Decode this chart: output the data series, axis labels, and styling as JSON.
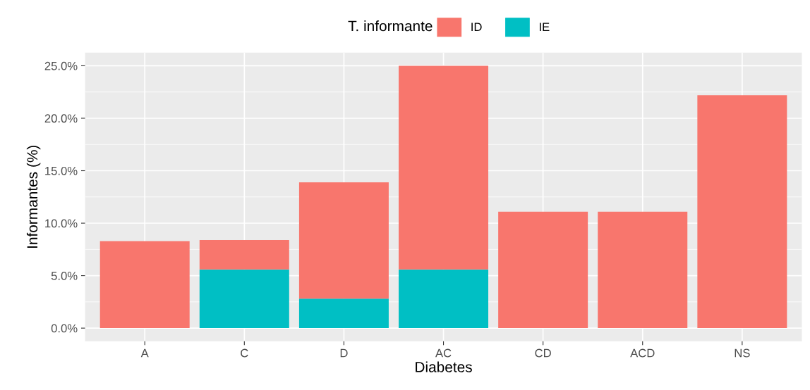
{
  "chart_data": {
    "type": "bar",
    "stacked": true,
    "xlabel": "Diabetes",
    "ylabel": "Informantes (%)",
    "legend_title": "T. informante",
    "legend": "top",
    "grid": true,
    "categories": [
      "A",
      "C",
      "D",
      "AC",
      "CD",
      "ACD",
      "NS"
    ],
    "series": [
      {
        "name": "IE",
        "color": "#00bfc4",
        "values": [
          0,
          5.6,
          2.8,
          5.6,
          0,
          0,
          0
        ]
      },
      {
        "name": "ID",
        "color": "#f8766d",
        "values": [
          8.3,
          2.8,
          11.1,
          19.4,
          11.1,
          11.1,
          22.2
        ]
      }
    ],
    "ylim": [
      -1.25,
      26.25
    ],
    "yticks": [
      {
        "value": 0,
        "label": "0.0%"
      },
      {
        "value": 5,
        "label": "5.0%"
      },
      {
        "value": 10,
        "label": "10.0%"
      },
      {
        "value": 15,
        "label": "15.0%"
      },
      {
        "value": 20,
        "label": "20.0%"
      },
      {
        "value": 25,
        "label": "25.0%"
      }
    ]
  }
}
